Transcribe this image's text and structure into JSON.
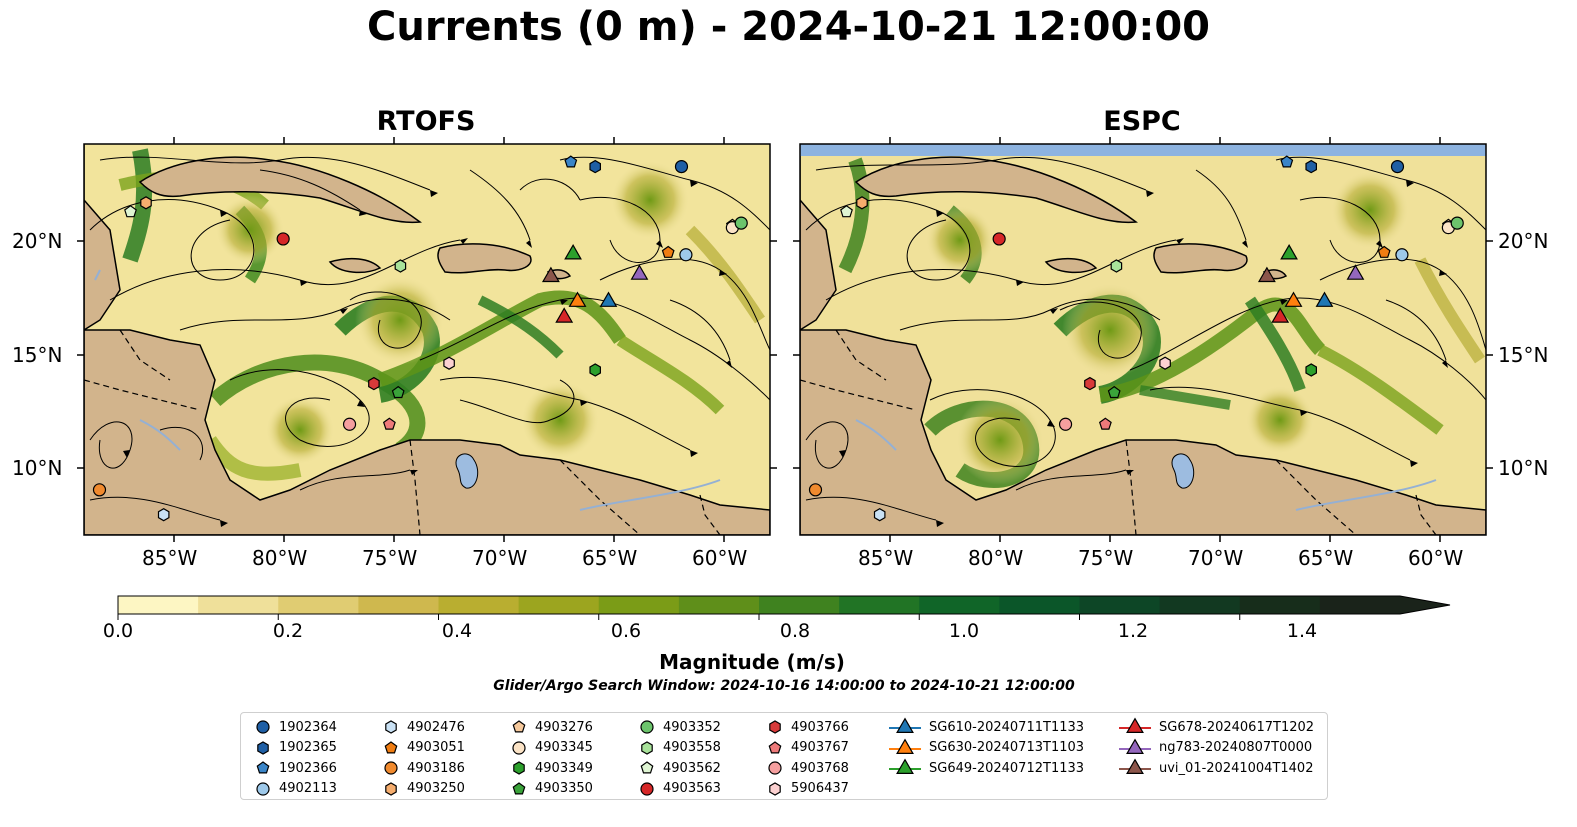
{
  "title": "Currents (0 m) - 2024-10-21 12:00:00",
  "panels": [
    {
      "title": "RTOFS"
    },
    {
      "title": "ESPC"
    }
  ],
  "lon_labels": [
    "85°W",
    "80°W",
    "75°W",
    "70°W",
    "65°W",
    "60°W"
  ],
  "lat_labels": [
    "20°N",
    "15°N",
    "10°N"
  ],
  "colorbar": {
    "title": "Magnitude (m/s)",
    "ticks": [
      "0.0",
      "0.2",
      "0.4",
      "0.6",
      "0.8",
      "1.0",
      "1.2",
      "1.4"
    ],
    "range": [
      0,
      1.6
    ],
    "colors": [
      "#fdf6c3",
      "#efe09a",
      "#e0cc72",
      "#cfb84e",
      "#b9ae30",
      "#9ca51f",
      "#7b9c17",
      "#5f8f1a",
      "#3f821f",
      "#217425",
      "#106528",
      "#0b5629",
      "#0d4626",
      "#123921",
      "#172d1b",
      "#1a231a"
    ]
  },
  "search_window": "Glider/Argo Search Window: 2024-10-16 14:00:00 to 2024-10-21 12:00:00",
  "legend": {
    "items": [
      {
        "label": "1902364",
        "marker": "circle",
        "color": "#1f5fa5"
      },
      {
        "label": "1902365",
        "marker": "hexagon",
        "color": "#1f5fa5"
      },
      {
        "label": "1902366",
        "marker": "pentagon",
        "color": "#3a85c8"
      },
      {
        "label": "4902113",
        "marker": "circle",
        "color": "#9ec9ea"
      },
      {
        "label": "4902476",
        "marker": "hexagon",
        "color": "#c9e1f4"
      },
      {
        "label": "4903051",
        "marker": "pentagon",
        "color": "#f07d12"
      },
      {
        "label": "4903186",
        "marker": "circle",
        "color": "#f08a2e"
      },
      {
        "label": "4903250",
        "marker": "hexagon",
        "color": "#f5ad6e"
      },
      {
        "label": "4903276",
        "marker": "pentagon",
        "color": "#f6c99c"
      },
      {
        "label": "4903345",
        "marker": "circle",
        "color": "#fbe3c6"
      },
      {
        "label": "4903349",
        "marker": "hexagon",
        "color": "#2ca02c"
      },
      {
        "label": "4903350",
        "marker": "pentagon",
        "color": "#3aa33a"
      },
      {
        "label": "4903352",
        "marker": "circle",
        "color": "#6cc46c"
      },
      {
        "label": "4903558",
        "marker": "hexagon",
        "color": "#a8e29a"
      },
      {
        "label": "4903562",
        "marker": "pentagon",
        "color": "#dff5d3"
      },
      {
        "label": "4903563",
        "marker": "circle",
        "color": "#d62728"
      },
      {
        "label": "4903766",
        "marker": "hexagon",
        "color": "#d83a3a"
      },
      {
        "label": "4903767",
        "marker": "pentagon",
        "color": "#ee7a7a"
      },
      {
        "label": "4903768",
        "marker": "circle",
        "color": "#f59f9f"
      },
      {
        "label": "5906437",
        "marker": "hexagon",
        "color": "#fcd1d1"
      },
      {
        "label": "SG610-20240711T1133",
        "marker": "triangle",
        "color": "#1f77b4"
      },
      {
        "label": "SG630-20240713T1103",
        "marker": "triangle",
        "color": "#ff7f0e"
      },
      {
        "label": "SG649-20240712T1133",
        "marker": "triangle",
        "color": "#2ca02c"
      },
      {
        "label": "SG678-20240617T1202",
        "marker": "triangle",
        "color": "#d62728"
      },
      {
        "label": "ng783-20240807T0000",
        "marker": "triangle",
        "color": "#9467bd"
      },
      {
        "label": "uvi_01-20241004T1402",
        "marker": "triangle",
        "color": "#8c564b"
      }
    ]
  },
  "map_markers": [
    {
      "ref": 0,
      "lon": -62.0,
      "lat": 23.3
    },
    {
      "ref": 1,
      "lon": -65.9,
      "lat": 23.3
    },
    {
      "ref": 2,
      "lon": -67.0,
      "lat": 23.5
    },
    {
      "ref": 3,
      "lon": -61.8,
      "lat": 19.4
    },
    {
      "ref": 4,
      "lon": -85.4,
      "lat": 7.9
    },
    {
      "ref": 5,
      "lon": -62.6,
      "lat": 19.5
    },
    {
      "ref": 6,
      "lon": -88.3,
      "lat": 9.0
    },
    {
      "ref": 7,
      "lon": -86.2,
      "lat": 21.7
    },
    {
      "ref": 8,
      "lon": -59.7,
      "lat": 20.7
    },
    {
      "ref": 9,
      "lon": -59.7,
      "lat": 20.6
    },
    {
      "ref": 10,
      "lon": -65.9,
      "lat": 14.3
    },
    {
      "ref": 11,
      "lon": -74.8,
      "lat": 13.3
    },
    {
      "ref": 12,
      "lon": -59.3,
      "lat": 20.8
    },
    {
      "ref": 13,
      "lon": -74.7,
      "lat": 18.9
    },
    {
      "ref": 14,
      "lon": -86.9,
      "lat": 21.3
    },
    {
      "ref": 15,
      "lon": -80.0,
      "lat": 20.1
    },
    {
      "ref": 16,
      "lon": -75.9,
      "lat": 13.7
    },
    {
      "ref": 17,
      "lon": -75.2,
      "lat": 11.9
    },
    {
      "ref": 18,
      "lon": -77.0,
      "lat": 11.9
    },
    {
      "ref": 19,
      "lon": -72.5,
      "lat": 14.6
    },
    {
      "ref": 20,
      "lon": -65.3,
      "lat": 17.4
    },
    {
      "ref": 21,
      "lon": -66.7,
      "lat": 17.4
    },
    {
      "ref": 22,
      "lon": -66.9,
      "lat": 19.5
    },
    {
      "ref": 23,
      "lon": -67.3,
      "lat": 16.7
    },
    {
      "ref": 24,
      "lon": -63.9,
      "lat": 18.6
    },
    {
      "ref": 25,
      "lon": -67.9,
      "lat": 18.5
    }
  ]
}
